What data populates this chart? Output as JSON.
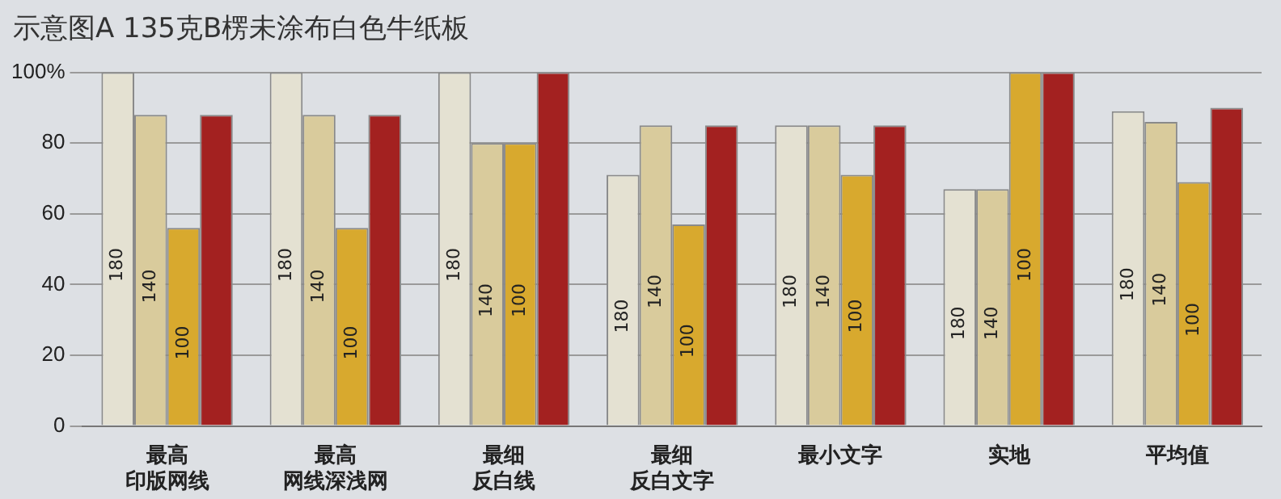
{
  "chart_data": {
    "type": "bar",
    "title": "示意图A  135克B楞未涂布白色牛纸板",
    "categories": [
      "最高印版网线",
      "最高网线深浅网",
      "最细反白线",
      "最细反白文字",
      "最小文字",
      "实地",
      "平均值"
    ],
    "series": [
      {
        "name": "180",
        "color": "#e4e1d2",
        "values": [
          100,
          100,
          100,
          71,
          85,
          67,
          89
        ]
      },
      {
        "name": "140",
        "color": "#d9cb9c",
        "values": [
          88,
          88,
          80,
          85,
          85,
          67,
          86
        ]
      },
      {
        "name": "100",
        "color": "#d8a92e",
        "values": [
          56,
          56,
          80,
          57,
          71,
          100,
          69
        ]
      },
      {
        "color": "#a32120",
        "values": [
          88,
          88,
          100,
          85,
          85,
          100,
          90
        ]
      }
    ],
    "ylim": [
      0,
      100
    ],
    "yticks": [
      0,
      20,
      40,
      60,
      80,
      {
        "value": 100,
        "label": "100%"
      }
    ],
    "grid": "y",
    "legend": false
  }
}
